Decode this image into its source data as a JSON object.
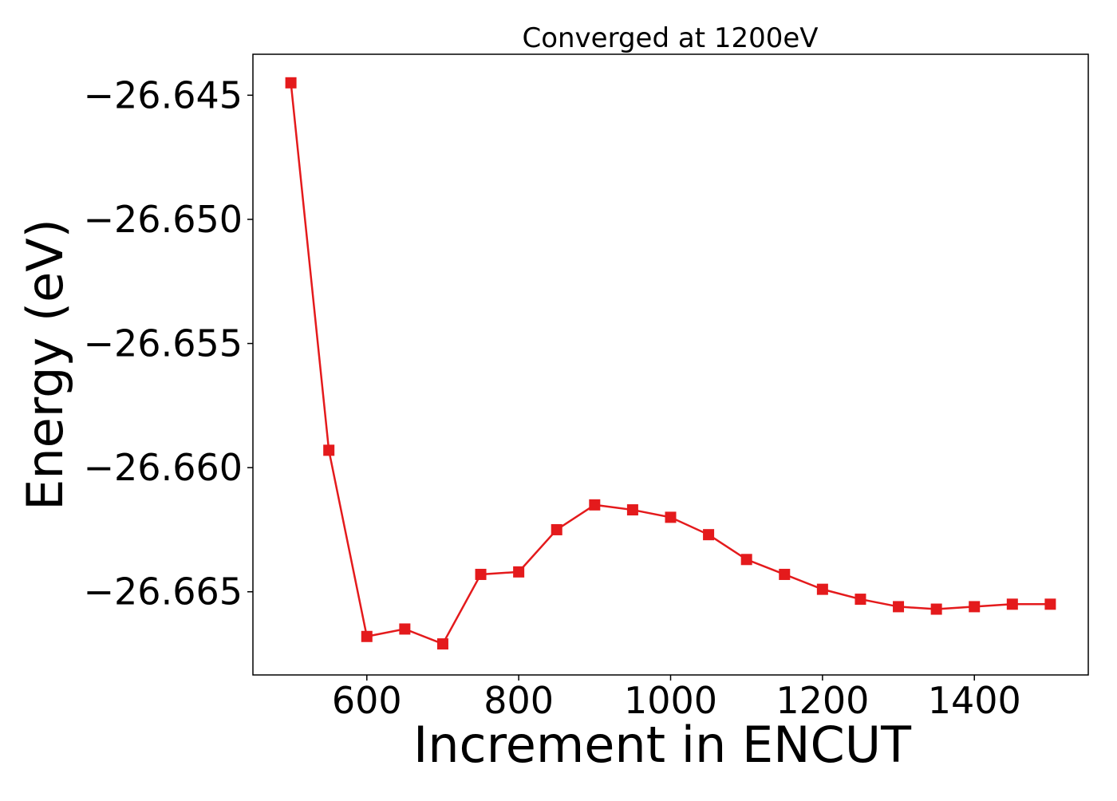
{
  "chart_data": {
    "type": "line",
    "title": "Converged at 1200eV",
    "xlabel": "Increment in ENCUT",
    "ylabel": "Energy (eV)",
    "xlim": [
      450,
      1550
    ],
    "ylim": [
      -26.66835,
      -26.64335
    ],
    "xticks": [
      {
        "value": 600,
        "label": "600"
      },
      {
        "value": 800,
        "label": "800"
      },
      {
        "value": 1000,
        "label": "1000"
      },
      {
        "value": 1200,
        "label": "1200"
      },
      {
        "value": 1400,
        "label": "1400"
      }
    ],
    "yticks": [
      {
        "value": -26.645,
        "label": "−26.645"
      },
      {
        "value": -26.65,
        "label": "−26.650"
      },
      {
        "value": -26.655,
        "label": "−26.655"
      },
      {
        "value": -26.66,
        "label": "−26.660"
      },
      {
        "value": -26.665,
        "label": "−26.665"
      }
    ],
    "grid": false,
    "series": [
      {
        "color": "#e41a1c",
        "marker": "square",
        "x": [
          500,
          550,
          600,
          650,
          700,
          750,
          800,
          850,
          900,
          950,
          1000,
          1050,
          1100,
          1150,
          1200,
          1250,
          1300,
          1350,
          1400,
          1450,
          1500
        ],
        "y": [
          -26.6445,
          -26.6593,
          -26.6668,
          -26.6665,
          -26.6671,
          -26.6643,
          -26.6642,
          -26.6625,
          -26.6615,
          -26.6617,
          -26.662,
          -26.6627,
          -26.6637,
          -26.6643,
          -26.6649,
          -26.6653,
          -26.6656,
          -26.6657,
          -26.6656,
          -26.6655,
          -26.6655
        ]
      }
    ]
  }
}
